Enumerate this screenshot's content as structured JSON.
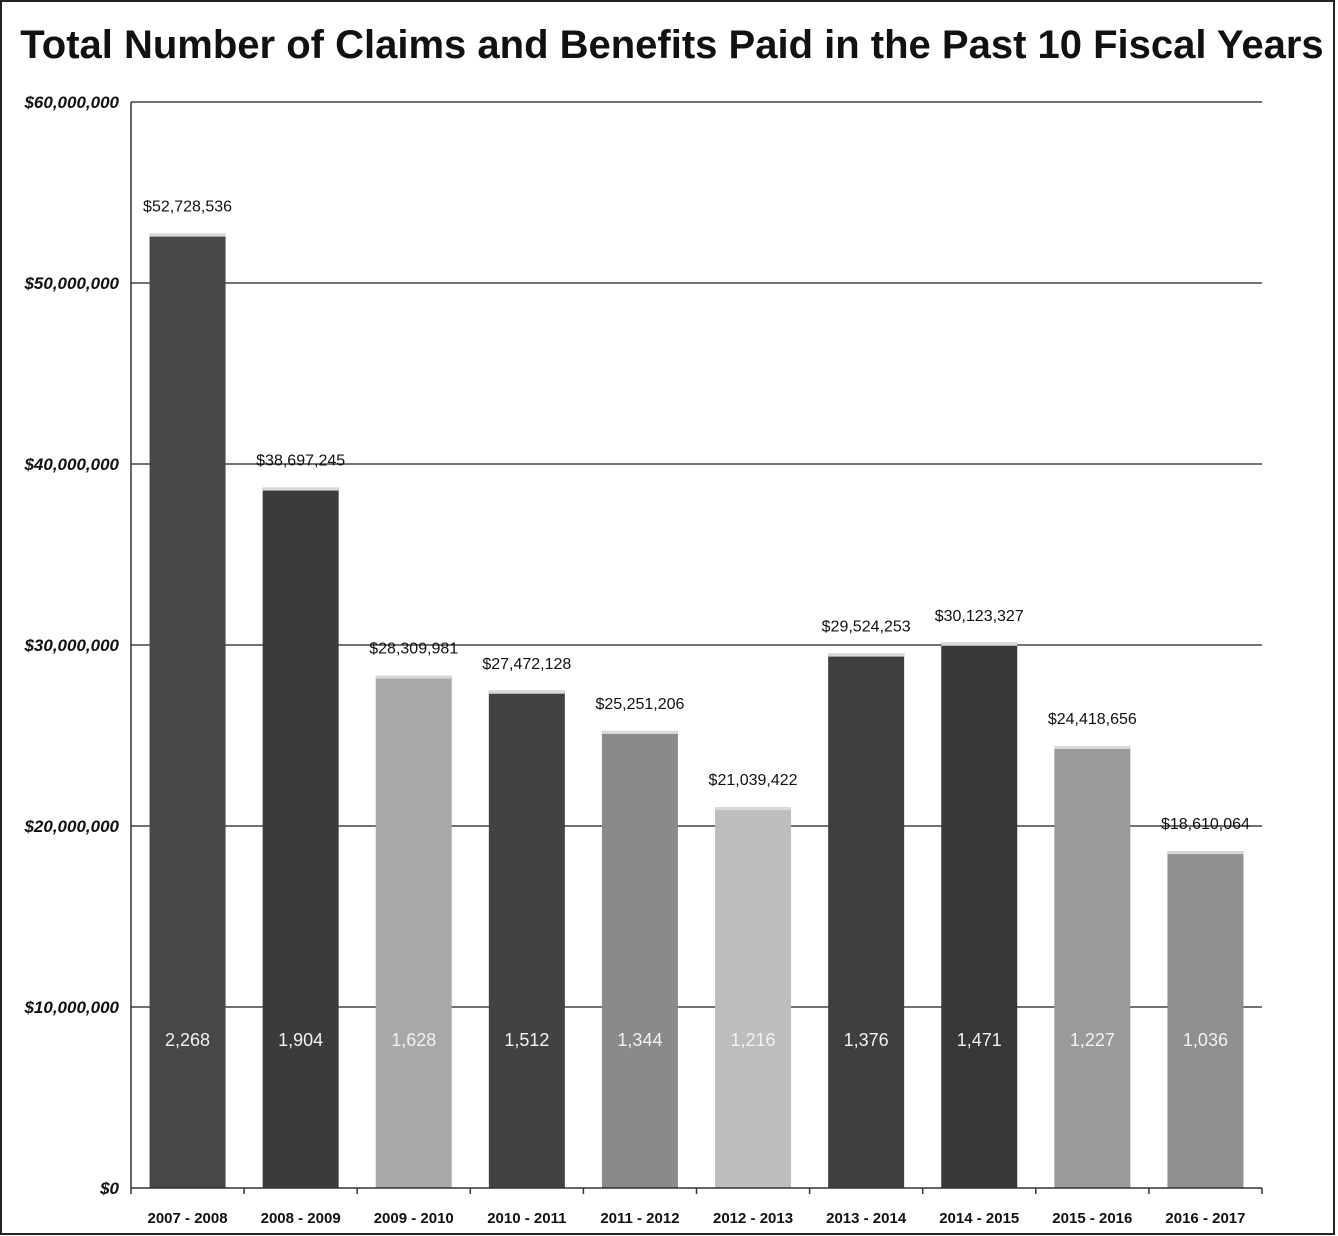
{
  "chart_data": {
    "type": "bar",
    "title": "Total Number of Claims and Benefits Paid in the Past 10 Fiscal Years",
    "xlabel": "",
    "ylabel": "",
    "ylim": [
      0,
      60000000
    ],
    "yticks": [
      {
        "value": 0,
        "label": "$0"
      },
      {
        "value": 10000000,
        "label": "$10,000,000"
      },
      {
        "value": 20000000,
        "label": "$20,000,000"
      },
      {
        "value": 30000000,
        "label": "$30,000,000"
      },
      {
        "value": 40000000,
        "label": "$40,000,000"
      },
      {
        "value": 50000000,
        "label": "$50,000,000"
      },
      {
        "value": 60000000,
        "label": "$60,000,000"
      }
    ],
    "grid": true,
    "categories": [
      "2007 - 2008",
      "2008 - 2009",
      "2009 - 2010",
      "2010 - 2011",
      "2011 - 2012",
      "2012 - 2013",
      "2013 - 2014",
      "2014 - 2015",
      "2015 - 2016",
      "2016 - 2017"
    ],
    "values": [
      52728536,
      38697245,
      28309981,
      27472128,
      25251206,
      21039422,
      29524253,
      30123327,
      24418656,
      18610064
    ],
    "value_labels": [
      "$52,728,536",
      "$38,697,245",
      "$28,309,981",
      "$27,472,128",
      "$25,251,206",
      "$21,039,422",
      "$29,524,253",
      "$30,123,327",
      "$24,418,656",
      "$18,610,064"
    ],
    "claim_counts": [
      "2,268",
      "1,904",
      "1,628",
      "1,512",
      "1,344",
      "1,216",
      "1,376",
      "1,471",
      "1,227",
      "1,036"
    ],
    "bar_colors": [
      "#474747",
      "#3b3b3b",
      "#a8a8a8",
      "#424242",
      "#8a8a8a",
      "#bdbdbd",
      "#3f3f3f",
      "#383838",
      "#9a9a9a",
      "#8f8f8f"
    ]
  }
}
